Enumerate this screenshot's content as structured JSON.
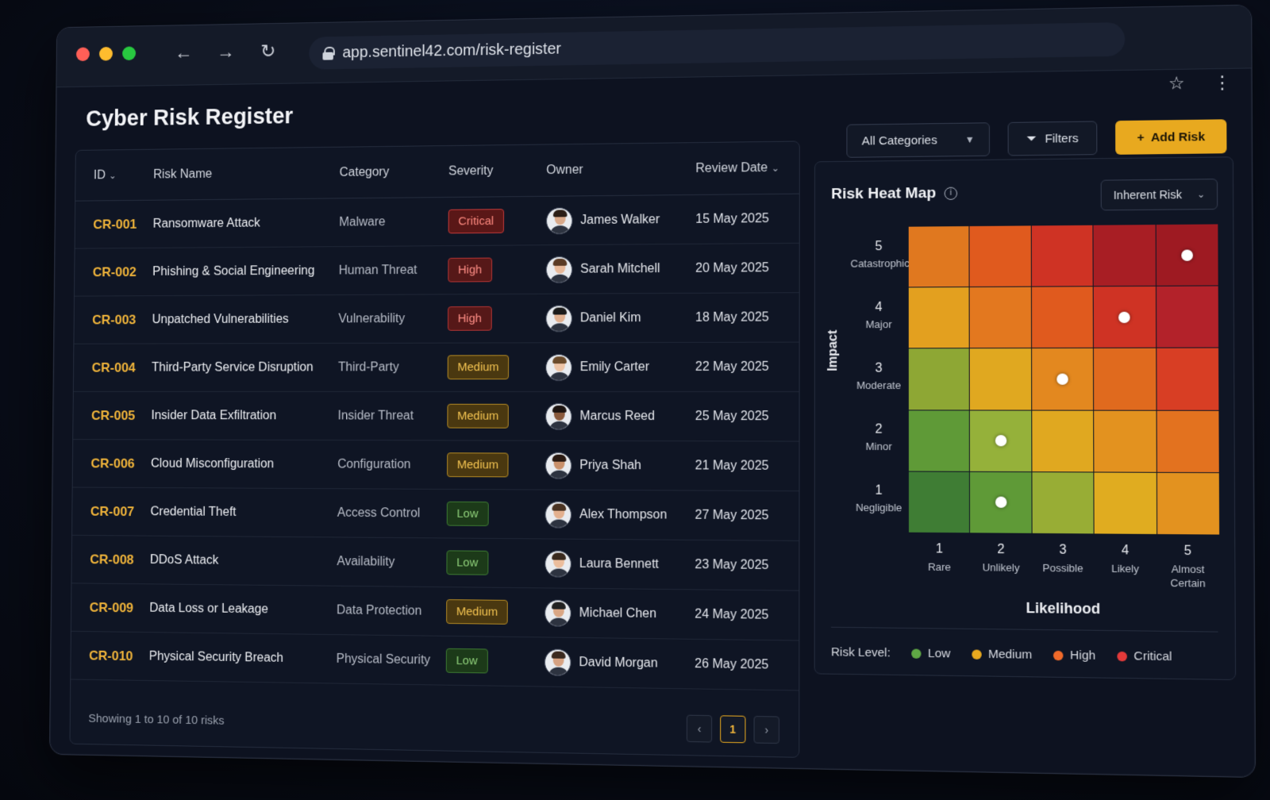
{
  "browser": {
    "url": "app.sentinel42.com/risk-register"
  },
  "page": {
    "title": "Cyber Risk Register"
  },
  "toolbar": {
    "category_select": "All Categories",
    "filters_label": "Filters",
    "add_label": "Add Risk"
  },
  "table": {
    "headers": {
      "id": "ID",
      "name": "Risk Name",
      "category": "Category",
      "severity": "Severity",
      "owner": "Owner",
      "review_date": "Review Date"
    },
    "rows": [
      {
        "id": "CR-001",
        "name": "Ransomware Attack",
        "category": "Malware",
        "severity": "Critical",
        "owner": "James Walker",
        "date": "15 May 2025"
      },
      {
        "id": "CR-002",
        "name": "Phishing & Social Engineering",
        "category": "Human Threat",
        "severity": "High",
        "owner": "Sarah Mitchell",
        "date": "20 May 2025"
      },
      {
        "id": "CR-003",
        "name": "Unpatched Vulnerabilities",
        "category": "Vulnerability",
        "severity": "High",
        "owner": "Daniel Kim",
        "date": "18 May 2025"
      },
      {
        "id": "CR-004",
        "name": "Third-Party Service Disruption",
        "category": "Third-Party",
        "severity": "Medium",
        "owner": "Emily Carter",
        "date": "22 May 2025"
      },
      {
        "id": "CR-005",
        "name": "Insider Data Exfiltration",
        "category": "Insider Threat",
        "severity": "Medium",
        "owner": "Marcus Reed",
        "date": "25 May 2025"
      },
      {
        "id": "CR-006",
        "name": "Cloud Misconfiguration",
        "category": "Configuration",
        "severity": "Medium",
        "owner": "Priya Shah",
        "date": "21 May 2025"
      },
      {
        "id": "CR-007",
        "name": "Credential Theft",
        "category": "Access Control",
        "severity": "Low",
        "owner": "Alex Thompson",
        "date": "27 May 2025"
      },
      {
        "id": "CR-008",
        "name": "DDoS Attack",
        "category": "Availability",
        "severity": "Low",
        "owner": "Laura Bennett",
        "date": "23 May 2025"
      },
      {
        "id": "CR-009",
        "name": "Data Loss or Leakage",
        "category": "Data Protection",
        "severity": "Medium",
        "owner": "Michael Chen",
        "date": "24 May 2025"
      },
      {
        "id": "CR-010",
        "name": "Physical Security Breach",
        "category": "Physical Security",
        "severity": "Low",
        "owner": "David Morgan",
        "date": "26 May 2025"
      }
    ],
    "showing": "Showing 1 to 10 of 10 risks",
    "current_page": "1"
  },
  "heatmap": {
    "title": "Risk Heat Map",
    "view_select": "Inherent Risk",
    "impact_axis": "Impact",
    "likelihood_axis": "Likelihood",
    "impact_levels": [
      {
        "n": "5",
        "t": "Catastrophic"
      },
      {
        "n": "4",
        "t": "Major"
      },
      {
        "n": "3",
        "t": "Moderate"
      },
      {
        "n": "2",
        "t": "Minor"
      },
      {
        "n": "1",
        "t": "Negligible"
      }
    ],
    "likelihood_levels": [
      {
        "n": "1",
        "t": "Rare"
      },
      {
        "n": "2",
        "t": "Unlikely"
      },
      {
        "n": "3",
        "t": "Possible"
      },
      {
        "n": "4",
        "t": "Likely"
      },
      {
        "n": "5",
        "t": "Almost Certain"
      }
    ],
    "cell_colors": [
      [
        "#e0781f",
        "#e05a1e",
        "#cf3324",
        "#a81e24",
        "#9e1a22"
      ],
      [
        "#e3a01f",
        "#e3781f",
        "#e05a1e",
        "#cf3324",
        "#b3222a"
      ],
      [
        "#8ea734",
        "#e0a820",
        "#e3881f",
        "#e06a1e",
        "#d83e24"
      ],
      [
        "#5f9a37",
        "#95b13a",
        "#e0a820",
        "#e3921f",
        "#e3721f"
      ],
      [
        "#3f7d34",
        "#5f9a37",
        "#98ad35",
        "#e0ac20",
        "#e3921f"
      ]
    ],
    "markers": [
      {
        "likelihood": 5,
        "impact": 5
      },
      {
        "likelihood": 4,
        "impact": 4
      },
      {
        "likelihood": 3,
        "impact": 3
      },
      {
        "likelihood": 2,
        "impact": 2
      },
      {
        "likelihood": 2,
        "impact": 1
      }
    ],
    "legend_label": "Risk Level:",
    "legend": [
      {
        "label": "Low",
        "color": "#5fa845"
      },
      {
        "label": "Medium",
        "color": "#e8a91f"
      },
      {
        "label": "High",
        "color": "#f06a2a"
      },
      {
        "label": "Critical",
        "color": "#e33a3a"
      }
    ]
  }
}
